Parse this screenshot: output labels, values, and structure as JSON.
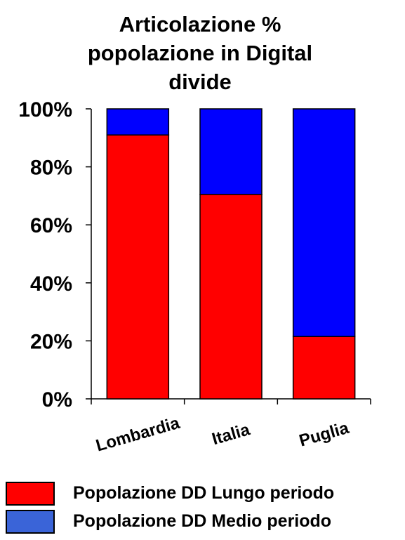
{
  "chart_data": {
    "type": "bar",
    "stacked": true,
    "percent": true,
    "title_lines": [
      "Articolazione %",
      "popolazione in Digital",
      "divide"
    ],
    "categories": [
      "Lombardia",
      "Italia",
      "Puglia"
    ],
    "series": [
      {
        "name": "Popolazione DD Lungo periodo",
        "color": "#ff0000",
        "values": [
          91,
          70.5,
          21.5
        ]
      },
      {
        "name": "Popolazione DD Medio periodo",
        "color": "#0000ff",
        "values": [
          9,
          29.5,
          78.5
        ]
      }
    ],
    "y_ticks": [
      "0%",
      "20%",
      "40%",
      "60%",
      "80%",
      "100%"
    ],
    "ylim": [
      0,
      100
    ],
    "grid": false,
    "legend_position": "bottom",
    "legend_colors": [
      "#ff0000",
      "#3a64d8"
    ]
  }
}
